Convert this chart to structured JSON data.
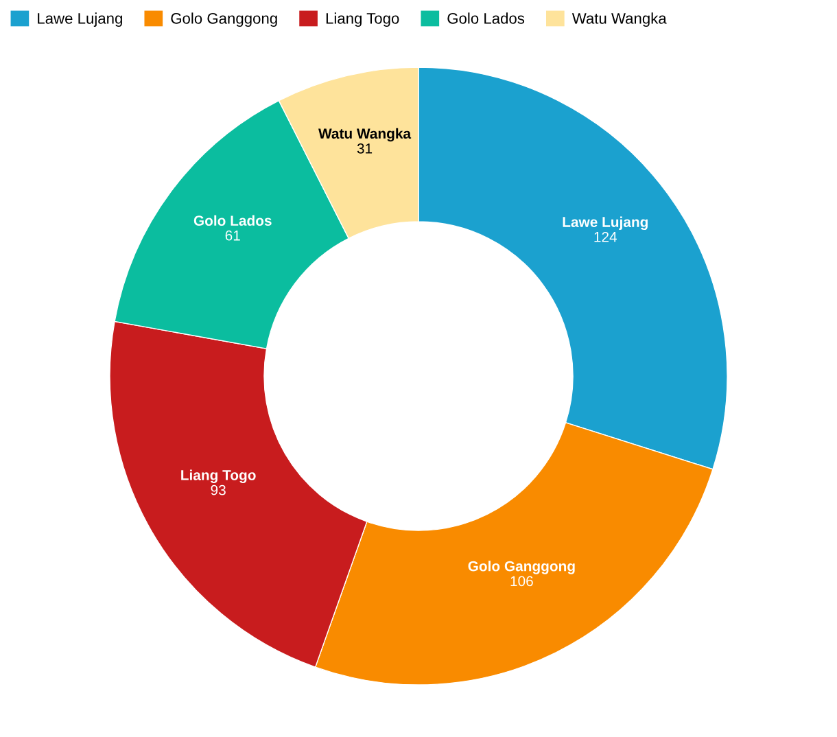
{
  "chart_data": {
    "type": "donut",
    "categories": [
      "Lawe Lujang",
      "Golo Ganggong",
      "Liang Togo",
      "Golo Lados",
      "Watu Wangka"
    ],
    "values": [
      124,
      106,
      93,
      61,
      31
    ],
    "colors": [
      "#1ba1cf",
      "#f98b00",
      "#c81c1e",
      "#0bbd9f",
      "#fee39b"
    ],
    "data_labels": true,
    "legend": "top left"
  }
}
